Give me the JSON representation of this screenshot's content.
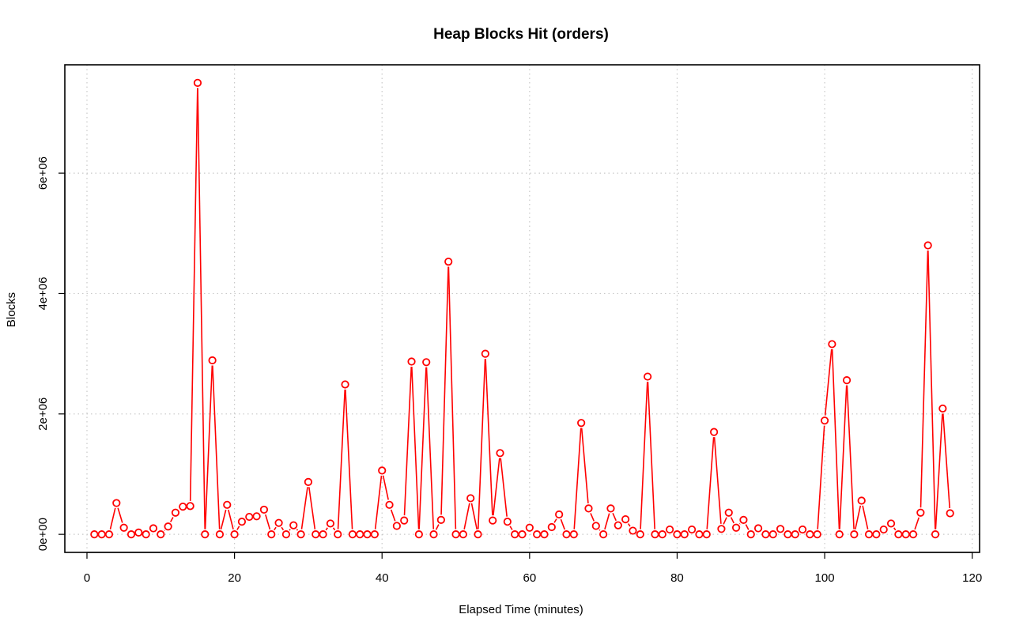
{
  "chart_data": {
    "type": "line",
    "title": "Heap Blocks Hit (orders)",
    "xlabel": "Elapsed Time (minutes)",
    "ylabel": "Blocks",
    "xlim": [
      -3,
      121
    ],
    "ylim": [
      -300000,
      7800000
    ],
    "x_ticks": [
      0,
      20,
      40,
      60,
      80,
      100,
      120
    ],
    "x_tick_labels": [
      "0",
      "20",
      "40",
      "60",
      "80",
      "100",
      "120"
    ],
    "y_ticks": [
      0,
      2000000,
      4000000,
      6000000
    ],
    "y_tick_labels": [
      "0e+00",
      "2e+06",
      "4e+06",
      "6e+06"
    ],
    "grid": true,
    "legend": "none",
    "series": [
      {
        "color": "#ff0000",
        "marker": "open-circle",
        "x": [
          1,
          2,
          3,
          4,
          5,
          6,
          7,
          8,
          9,
          10,
          11,
          12,
          13,
          14,
          15,
          16,
          17,
          18,
          19,
          20,
          21,
          22,
          23,
          24,
          25,
          26,
          27,
          28,
          29,
          30,
          31,
          32,
          33,
          34,
          35,
          36,
          37,
          38,
          39,
          40,
          41,
          42,
          43,
          44,
          45,
          46,
          47,
          48,
          49,
          50,
          51,
          52,
          53,
          54,
          55,
          56,
          57,
          58,
          59,
          60,
          61,
          62,
          63,
          64,
          65,
          66,
          67,
          68,
          69,
          70,
          71,
          72,
          73,
          74,
          75,
          76,
          77,
          78,
          79,
          80,
          81,
          82,
          83,
          84,
          85,
          86,
          87,
          88,
          89,
          90,
          91,
          92,
          93,
          94,
          95,
          96,
          97,
          98,
          99,
          100,
          101,
          102,
          103,
          104,
          105,
          106,
          107,
          108,
          109,
          110,
          111,
          112,
          113,
          114,
          115,
          116,
          117
        ],
        "values": [
          0,
          0,
          0,
          520000,
          110000,
          0,
          30000,
          0,
          100000,
          0,
          130000,
          360000,
          460000,
          470000,
          7500000,
          0,
          2890000,
          0,
          490000,
          0,
          210000,
          290000,
          300000,
          410000,
          0,
          190000,
          0,
          150000,
          0,
          870000,
          0,
          0,
          180000,
          0,
          2490000,
          0,
          0,
          0,
          0,
          1060000,
          490000,
          140000,
          230000,
          2870000,
          0,
          2860000,
          0,
          240000,
          4530000,
          0,
          0,
          600000,
          0,
          3000000,
          230000,
          1350000,
          210000,
          0,
          0,
          110000,
          0,
          0,
          120000,
          330000,
          0,
          0,
          1850000,
          430000,
          140000,
          0,
          430000,
          150000,
          250000,
          60000,
          0,
          2620000,
          0,
          0,
          80000,
          0,
          0,
          80000,
          0,
          0,
          1700000,
          90000,
          360000,
          110000,
          240000,
          0,
          100000,
          0,
          0,
          90000,
          0,
          0,
          80000,
          0,
          0,
          1890000,
          3160000,
          0,
          2560000,
          0,
          560000,
          0,
          0,
          80000,
          180000,
          0,
          0,
          0,
          360000,
          4800000,
          0,
          2090000,
          350000
        ]
      }
    ]
  }
}
